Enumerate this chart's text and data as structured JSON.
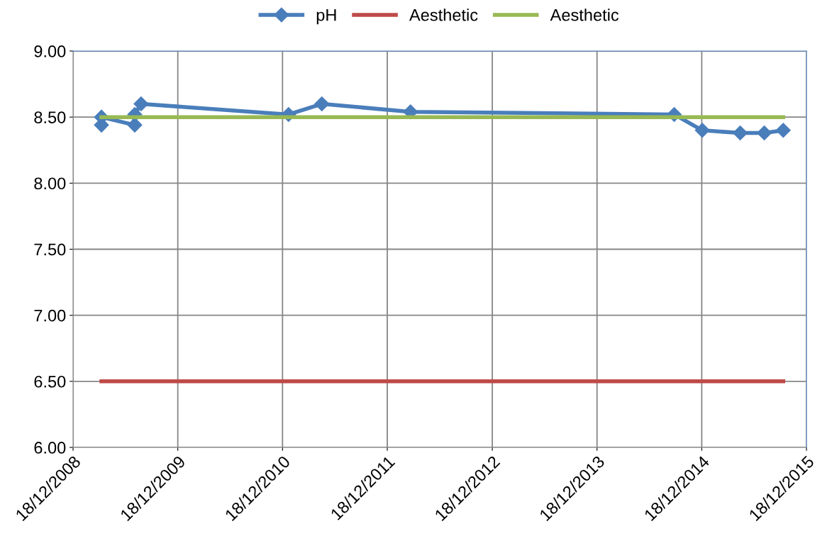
{
  "chart_data": {
    "type": "line",
    "legend": "top",
    "grid": true,
    "xlim": [
      "2008-12-18",
      "2015-12-18"
    ],
    "xticks": [
      {
        "value": "2008-12-18",
        "label": "18/12/2008"
      },
      {
        "value": "2009-12-18",
        "label": "18/12/2009"
      },
      {
        "value": "2010-12-18",
        "label": "18/12/2010"
      },
      {
        "value": "2011-12-18",
        "label": "18/12/2011"
      },
      {
        "value": "2012-12-18",
        "label": "18/12/2012"
      },
      {
        "value": "2013-12-18",
        "label": "18/12/2013"
      },
      {
        "value": "2014-12-18",
        "label": "18/12/2014"
      },
      {
        "value": "2015-12-18",
        "label": "18/12/2015"
      }
    ],
    "ylim": [
      6,
      9
    ],
    "yticks": [
      {
        "value": 6,
        "label": "6.00"
      },
      {
        "value": 6.5,
        "label": "6.50"
      },
      {
        "value": 7,
        "label": "7.00"
      },
      {
        "value": 7.5,
        "label": "7.50"
      },
      {
        "value": 8,
        "label": "8.00"
      },
      {
        "value": 8.5,
        "label": "8.50"
      },
      {
        "value": 9,
        "label": "9.00"
      }
    ],
    "series": [
      {
        "name": "pH",
        "color": "#4a7ebb",
        "marker": "diamond",
        "x": [
          "2009-03-27",
          "2009-03-27",
          "2009-07-21",
          "2009-07-21",
          "2009-08-12",
          "2011-01-08",
          "2011-05-04",
          "2012-03-08",
          "2014-09-13",
          "2014-12-20",
          "2015-05-01",
          "2015-07-24",
          "2015-09-28"
        ],
        "values": [
          8.44,
          8.5,
          8.44,
          8.52,
          8.6,
          8.52,
          8.6,
          8.54,
          8.52,
          8.4,
          8.38,
          8.38,
          8.4
        ]
      },
      {
        "name": "Aesthetic",
        "color": "#be4b48",
        "marker": "none",
        "x": [
          "2009-03-27",
          "2015-09-28"
        ],
        "values": [
          6.5,
          6.5
        ]
      },
      {
        "name": "Aesthetic",
        "color": "#98b954",
        "marker": "none",
        "x": [
          "2009-03-27",
          "2015-09-28"
        ],
        "values": [
          8.5,
          8.5
        ]
      }
    ]
  }
}
